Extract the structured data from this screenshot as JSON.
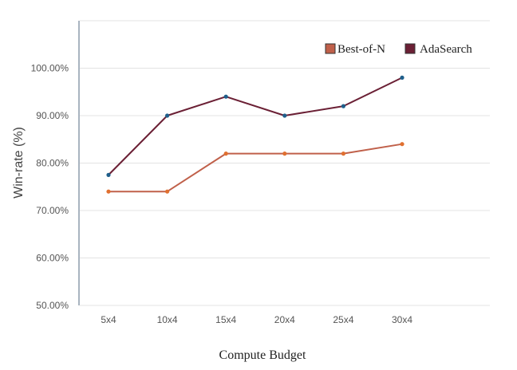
{
  "chart_data": {
    "type": "line",
    "title": "",
    "xlabel": "Compute Budget",
    "ylabel": "Win-rate (%)",
    "categories": [
      "5x4",
      "10x4",
      "15x4",
      "20x4",
      "25x4",
      "30x4"
    ],
    "ylim": [
      50,
      110
    ],
    "yticks": [
      50,
      60,
      70,
      80,
      90,
      100
    ],
    "ytick_labels": [
      "50.00%",
      "60.00%",
      "70.00%",
      "80.00%",
      "90.00%",
      "100.00%"
    ],
    "grid": true,
    "legend_position": "top-right",
    "series": [
      {
        "name": "Best-of-N",
        "values": [
          74,
          74,
          82,
          82,
          82,
          84
        ],
        "line_color": "#c0604a",
        "marker_color": "#e07030",
        "legend_color": "#c0604a"
      },
      {
        "name": "AdaSearch",
        "values": [
          77.5,
          90,
          94,
          90,
          92,
          98
        ],
        "line_color": "#6b2035",
        "marker_color": "#1f5f8b",
        "legend_color": "#6b2035"
      }
    ]
  }
}
